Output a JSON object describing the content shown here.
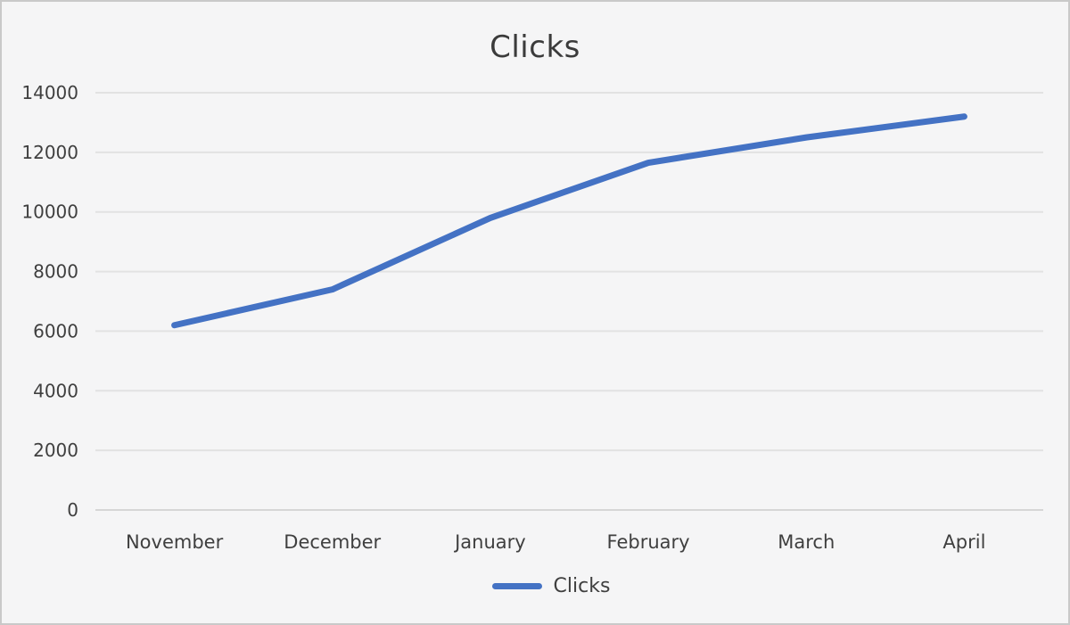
{
  "title": "Clicks",
  "legend": {
    "label": "Clicks"
  },
  "colors": {
    "background": "#f5f5f6",
    "frame_border": "#c9c9c9",
    "gridline": "#e2e2e2",
    "axis_line": "#d6d6d6",
    "text": "#3f3f3f",
    "title_text": "#3b3b3b",
    "series_line": "#4472c4"
  },
  "chart_data": {
    "type": "line",
    "title": "Clicks",
    "categories": [
      "November",
      "December",
      "January",
      "February",
      "March",
      "April"
    ],
    "series": [
      {
        "name": "Clicks",
        "values": [
          6200,
          7400,
          9800,
          11650,
          12500,
          13200
        ],
        "color": "#4472c4"
      }
    ],
    "xlabel": "",
    "ylabel": "",
    "ylim": [
      0,
      14000
    ],
    "yticks": [
      0,
      2000,
      4000,
      6000,
      8000,
      10000,
      12000,
      14000
    ],
    "grid": true,
    "legend_position": "bottom"
  }
}
